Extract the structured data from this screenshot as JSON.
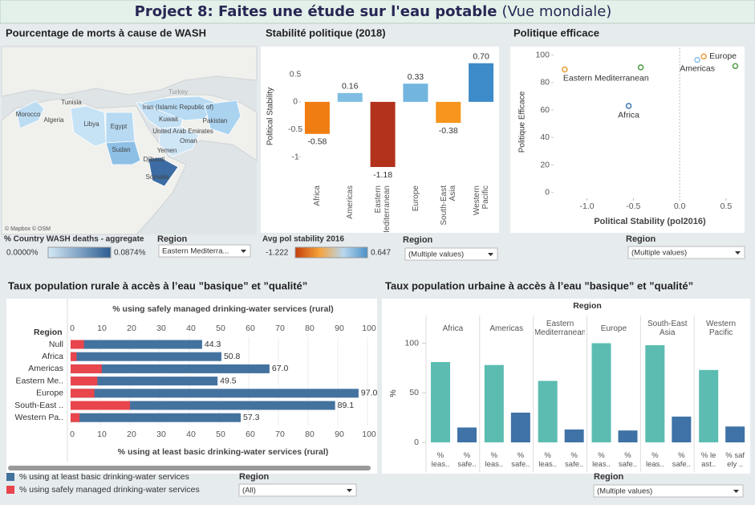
{
  "header": {
    "title": "Project 8: Faites une étude sur l'eau potable",
    "subtitle": "(Vue mondiale)"
  },
  "map": {
    "title": "Pourcentage de morts à cause de WASH",
    "countries": [
      "Morocco",
      "Algeria",
      "Tunisia",
      "Libya",
      "Egypt",
      "Sudan",
      "Iran (Islamic Republic of)",
      "Kuwait",
      "Pakistan",
      "United Arab Emirates",
      "Oman",
      "Yemen",
      "Djibouti",
      "Somalia"
    ],
    "other_labels": [
      "Turkey"
    ],
    "attribution": "© Mapbox © OSM",
    "legend": {
      "title": "% Country WASH deaths - aggregate",
      "min_label": "0.0000%",
      "max_label": "0.0874%",
      "gradient": [
        "#d4e9f7",
        "#2c5d92"
      ]
    },
    "filter": {
      "label": "Region",
      "value": "Eastern Mediterra..."
    }
  },
  "chart_data": [
    {
      "type": "bar",
      "title": "Stabilité politique (2018)",
      "y_label": "Political Stability",
      "categories": [
        "Africa",
        "Americas",
        "Eastern Mediterranean",
        "Europe",
        "South-East Asia",
        "Western Pacific"
      ],
      "values": [
        -0.58,
        0.16,
        -1.18,
        0.33,
        -0.38,
        0.7
      ],
      "value_labels": [
        "-0.58",
        "0.16",
        "-1.18",
        "0.33",
        "-0.38",
        "0.70"
      ],
      "colors": [
        "#f07d12",
        "#7fbde3",
        "#b2321c",
        "#72b6e0",
        "#f7961d",
        "#3d8bc9"
      ],
      "ylim": [
        -1.5,
        0.9
      ],
      "yticks": [
        0.5,
        0,
        -0.5,
        -1
      ],
      "grid": false,
      "color_legend": {
        "title": "Avg pol stability 2016",
        "min": -1.222,
        "max": 0.647,
        "gradient": [
          "#c4400c",
          "#f7a23a",
          "#b8d8ef",
          "#4a90c8"
        ]
      },
      "filter": {
        "label": "Region",
        "value": "(Multiple values)"
      }
    },
    {
      "type": "scatter",
      "title": "Politique efficace",
      "x_label": "Political Stability (pol2016)",
      "y_label": "Politique Efficace",
      "x": [
        -1.24,
        -0.55,
        -0.42,
        0.19,
        0.26,
        0.6
      ],
      "y": [
        89.5,
        63,
        91,
        96.5,
        99,
        92
      ],
      "point_labels": [
        "Eastern Mediterranean",
        "Africa",
        null,
        "Americas",
        "Europe",
        null
      ],
      "colors": [
        "#e8a33d",
        "#4a7fb5",
        "#59a14f",
        "#8fc3e8",
        "#f0a04b",
        "#59a14f"
      ],
      "xlim": [
        -1.36,
        0.7
      ],
      "ylim": [
        -6,
        105
      ],
      "xticks": [
        {
          "value": -1,
          "label": "-1.0"
        },
        -0.5,
        {
          "value": 0,
          "label": "0.0"
        },
        0.5
      ],
      "yticks": [
        0,
        20,
        40,
        60,
        80,
        100
      ],
      "filter": {
        "label": "Region",
        "value": "(Multiple values)"
      }
    },
    {
      "type": "hbar",
      "title": "Taux population rurale à accès à l’eau ”basique” et ”qualité”",
      "top_axis_label": "% using safely managed drinking-water services (rural)",
      "x_label": "% using at least basic drinking-water services (rural)",
      "row_header": "Region",
      "categories": [
        "Null",
        "Africa",
        "Americas",
        "Eastern Me..",
        "Europe",
        "South-East ..",
        "Western Pa.."
      ],
      "series": [
        {
          "name": "% using at least basic drinking-water services",
          "color": "#44729f",
          "values": [
            44.3,
            50.8,
            67.0,
            49.5,
            97.0,
            89.1,
            57.3
          ],
          "value_labels": [
            "44.3",
            "50.8",
            "67.0",
            "49.5",
            "97.0",
            "89.1",
            "57.3"
          ]
        },
        {
          "name": "% using safely managed drinking-water services",
          "color": "#e8454d",
          "values": [
            4.5,
            2,
            10.5,
            9,
            8,
            20,
            3
          ]
        }
      ],
      "xlim": [
        0,
        100
      ],
      "xticks": [
        0,
        10,
        20,
        30,
        40,
        50,
        60,
        70,
        80,
        90,
        100
      ],
      "filter": {
        "label": "Region",
        "value": "(All)"
      }
    },
    {
      "type": "grouped_bar",
      "title": "Taux population urbaine à accès à l’eau ”basique” et ”qualité”",
      "group_header": "Region",
      "y_label": "%",
      "categories": [
        "Africa",
        "Americas",
        "Eastern Mediterranean",
        "Europe",
        "South-East Asia",
        "Western Pacific"
      ],
      "bar_labels": [
        [
          "% leas..",
          "% safe.."
        ],
        [
          "% leas..",
          "% safe.."
        ],
        [
          "% leas..",
          "% safe.."
        ],
        [
          "% leas..",
          "% safe.."
        ],
        [
          "% leas..",
          "% safe.."
        ],
        [
          "% le ast..",
          "% saf ely .."
        ]
      ],
      "series": [
        {
          "color": "#5cbcb1",
          "values": [
            81,
            78,
            62,
            100,
            98,
            73
          ]
        },
        {
          "color": "#3f72a6",
          "values": [
            15,
            30,
            13,
            12,
            26,
            16
          ]
        }
      ],
      "ylim": [
        0,
        102
      ],
      "yticks": [
        0,
        50,
        100
      ],
      "filter": {
        "label": "Region",
        "value": "(Multiple values)"
      }
    }
  ]
}
